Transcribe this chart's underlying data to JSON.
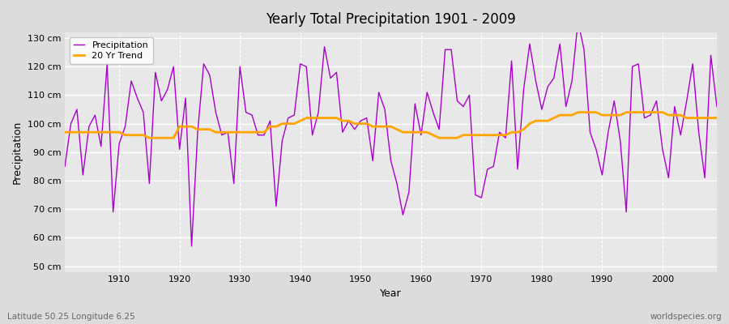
{
  "title": "Yearly Total Precipitation 1901 - 2009",
  "xlabel": "Year",
  "ylabel": "Precipitation",
  "subtitle_left": "Latitude 50.25 Longitude 6.25",
  "subtitle_right": "worldspecies.org",
  "ylim": [
    48,
    132
  ],
  "yticks": [
    50,
    60,
    70,
    80,
    90,
    100,
    110,
    120,
    130
  ],
  "ytick_labels": [
    "50 cm",
    "60 cm",
    "70 cm",
    "80 cm",
    "90 cm",
    "100 cm",
    "110 cm",
    "120 cm",
    "130 cm"
  ],
  "xticks": [
    1910,
    1920,
    1930,
    1940,
    1950,
    1960,
    1970,
    1980,
    1990,
    2000
  ],
  "precip_color": "#AA00CC",
  "trend_color": "#FFA500",
  "fig_bg": "#DCDCDC",
  "plot_bg": "#E8E8E8",
  "years": [
    1901,
    1902,
    1903,
    1904,
    1905,
    1906,
    1907,
    1908,
    1909,
    1910,
    1911,
    1912,
    1913,
    1914,
    1915,
    1916,
    1917,
    1918,
    1919,
    1920,
    1921,
    1922,
    1923,
    1924,
    1925,
    1926,
    1927,
    1928,
    1929,
    1930,
    1931,
    1932,
    1933,
    1934,
    1935,
    1936,
    1937,
    1938,
    1939,
    1940,
    1941,
    1942,
    1943,
    1944,
    1945,
    1946,
    1947,
    1948,
    1949,
    1950,
    1951,
    1952,
    1953,
    1954,
    1955,
    1956,
    1957,
    1958,
    1959,
    1960,
    1961,
    1962,
    1963,
    1964,
    1965,
    1966,
    1967,
    1968,
    1969,
    1970,
    1971,
    1972,
    1973,
    1974,
    1975,
    1976,
    1977,
    1978,
    1979,
    1980,
    1981,
    1982,
    1983,
    1984,
    1985,
    1986,
    1987,
    1988,
    1989,
    1990,
    1991,
    1992,
    1993,
    1994,
    1995,
    1996,
    1997,
    1998,
    1999,
    2000,
    2001,
    2002,
    2003,
    2004,
    2005,
    2006,
    2007,
    2008,
    2009
  ],
  "precip": [
    85,
    100,
    105,
    82,
    99,
    103,
    92,
    121,
    69,
    93,
    99,
    115,
    109,
    104,
    79,
    118,
    108,
    112,
    120,
    91,
    109,
    57,
    97,
    121,
    117,
    104,
    96,
    97,
    79,
    120,
    104,
    103,
    96,
    96,
    101,
    71,
    94,
    102,
    103,
    121,
    120,
    96,
    104,
    127,
    116,
    118,
    97,
    101,
    98,
    101,
    102,
    87,
    111,
    105,
    87,
    79,
    68,
    76,
    107,
    96,
    111,
    104,
    98,
    126,
    126,
    108,
    106,
    110,
    75,
    74,
    84,
    85,
    97,
    95,
    122,
    84,
    112,
    128,
    115,
    105,
    113,
    116,
    128,
    106,
    115,
    136,
    126,
    97,
    91,
    82,
    97,
    108,
    94,
    69,
    120,
    121,
    102,
    103,
    108,
    91,
    81,
    106,
    96,
    108,
    121,
    97,
    81,
    124,
    106
  ],
  "trend": [
    97,
    97,
    97,
    97,
    97,
    97,
    97,
    97,
    97,
    97,
    96,
    96,
    96,
    96,
    95,
    95,
    95,
    95,
    95,
    99,
    99,
    99,
    98,
    98,
    98,
    97,
    97,
    97,
    97,
    97,
    97,
    97,
    97,
    97,
    99,
    99,
    100,
    100,
    100,
    101,
    102,
    102,
    102,
    102,
    102,
    102,
    101,
    101,
    100,
    100,
    100,
    99,
    99,
    99,
    99,
    98,
    97,
    97,
    97,
    97,
    97,
    96,
    95,
    95,
    95,
    95,
    96,
    96,
    96,
    96,
    96,
    96,
    96,
    96,
    97,
    97,
    98,
    100,
    101,
    101,
    101,
    102,
    103,
    103,
    103,
    104,
    104,
    104,
    104,
    103,
    103,
    103,
    103,
    104,
    104,
    104,
    104,
    104,
    104,
    104,
    103,
    103,
    103,
    102,
    102,
    102,
    102,
    102,
    102
  ]
}
